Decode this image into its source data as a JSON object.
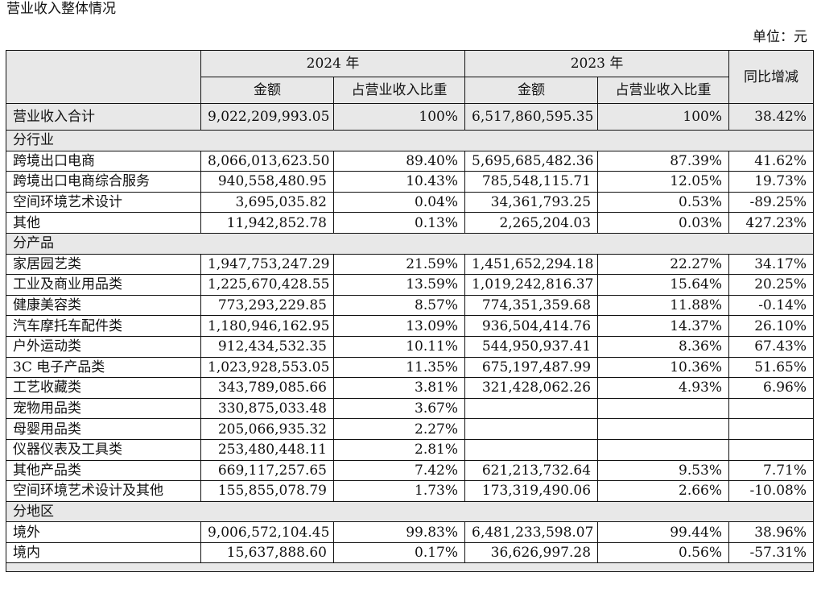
{
  "title": "营业收入整体情况",
  "unit": "单位：元",
  "header": {
    "year_2024": "2024 年",
    "year_2023": "2023 年",
    "amount": "金额",
    "share": "占营业收入比重",
    "yoy": "同比增减"
  },
  "total": {
    "label": "营业收入合计",
    "amt2024": "9,022,209,993.05",
    "pct2024": "100%",
    "amt2023": "6,517,860,595.35",
    "pct2023": "100%",
    "yoy": "38.42%"
  },
  "sections": [
    {
      "name": "分行业",
      "rows": [
        {
          "label": "跨境出口电商",
          "amt2024": "8,066,013,623.50",
          "pct2024": "89.40%",
          "amt2023": "5,695,685,482.36",
          "pct2023": "87.39%",
          "yoy": "41.62%"
        },
        {
          "label": "跨境出口电商综合服务",
          "amt2024": "940,558,480.95",
          "pct2024": "10.43%",
          "amt2023": "785,548,115.71",
          "pct2023": "12.05%",
          "yoy": "19.73%"
        },
        {
          "label": "空间环境艺术设计",
          "amt2024": "3,695,035.82",
          "pct2024": "0.04%",
          "amt2023": "34,361,793.25",
          "pct2023": "0.53%",
          "yoy": "-89.25%"
        },
        {
          "label": "其他",
          "amt2024": "11,942,852.78",
          "pct2024": "0.13%",
          "amt2023": "2,265,204.03",
          "pct2023": "0.03%",
          "yoy": "427.23%"
        }
      ]
    },
    {
      "name": "分产品",
      "rows": [
        {
          "label": "家居园艺类",
          "amt2024": "1,947,753,247.29",
          "pct2024": "21.59%",
          "amt2023": "1,451,652,294.18",
          "pct2023": "22.27%",
          "yoy": "34.17%"
        },
        {
          "label": "工业及商业用品类",
          "amt2024": "1,225,670,428.55",
          "pct2024": "13.59%",
          "amt2023": "1,019,242,816.37",
          "pct2023": "15.64%",
          "yoy": "20.25%"
        },
        {
          "label": "健康美容类",
          "amt2024": "773,293,229.85",
          "pct2024": "8.57%",
          "amt2023": "774,351,359.68",
          "pct2023": "11.88%",
          "yoy": "-0.14%"
        },
        {
          "label": "汽车摩托车配件类",
          "amt2024": "1,180,946,162.95",
          "pct2024": "13.09%",
          "amt2023": "936,504,414.76",
          "pct2023": "14.37%",
          "yoy": "26.10%"
        },
        {
          "label": "户外运动类",
          "amt2024": "912,434,532.35",
          "pct2024": "10.11%",
          "amt2023": "544,950,937.41",
          "pct2023": "8.36%",
          "yoy": "67.43%"
        },
        {
          "label": "3C 电子产品类",
          "amt2024": "1,023,928,553.05",
          "pct2024": "11.35%",
          "amt2023": "675,197,487.99",
          "pct2023": "10.36%",
          "yoy": "51.65%"
        },
        {
          "label": "工艺收藏类",
          "amt2024": "343,789,085.66",
          "pct2024": "3.81%",
          "amt2023": "321,428,062.26",
          "pct2023": "4.93%",
          "yoy": "6.96%"
        },
        {
          "label": "宠物用品类",
          "amt2024": "330,875,033.48",
          "pct2024": "3.67%",
          "amt2023": "",
          "pct2023": "",
          "yoy": ""
        },
        {
          "label": "母婴用品类",
          "amt2024": "205,066,935.32",
          "pct2024": "2.27%",
          "amt2023": "",
          "pct2023": "",
          "yoy": ""
        },
        {
          "label": "仪器仪表及工具类",
          "amt2024": "253,480,448.11",
          "pct2024": "2.81%",
          "amt2023": "",
          "pct2023": "",
          "yoy": ""
        },
        {
          "label": "其他产品类",
          "amt2024": "669,117,257.65",
          "pct2024": "7.42%",
          "amt2023": "621,213,732.64",
          "pct2023": "9.53%",
          "yoy": "7.71%"
        },
        {
          "label": "空间环境艺术设计及其他",
          "amt2024": "155,855,078.79",
          "pct2024": "1.73%",
          "amt2023": "173,319,490.06",
          "pct2023": "2.66%",
          "yoy": "-10.08%"
        }
      ]
    },
    {
      "name": "分地区",
      "rows": [
        {
          "label": "境外",
          "amt2024": "9,006,572,104.45",
          "pct2024": "99.83%",
          "amt2023": "6,481,233,598.07",
          "pct2023": "99.44%",
          "yoy": "38.96%"
        },
        {
          "label": "境内",
          "amt2024": "15,637,888.60",
          "pct2024": "0.17%",
          "amt2023": "36,626,997.28",
          "pct2023": "0.56%",
          "yoy": "-57.31%"
        }
      ]
    }
  ]
}
